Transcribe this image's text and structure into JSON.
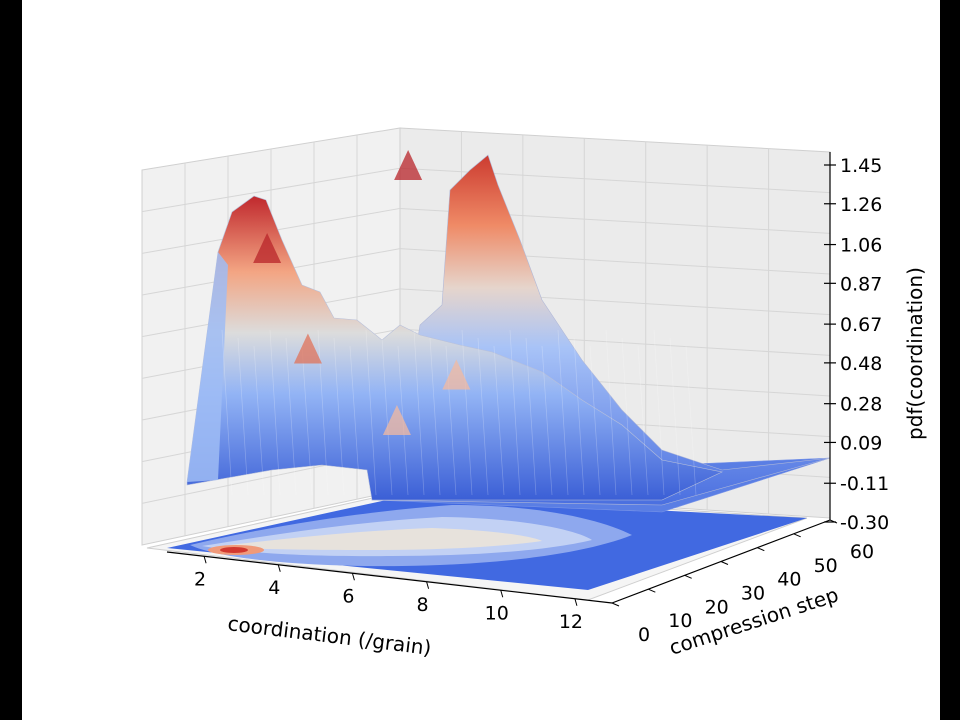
{
  "chart_data": {
    "type": "surface3d",
    "title": "",
    "xlabel": "coordination (/grain)",
    "ylabel": "compression step",
    "zlabel": "pdf(coordination)",
    "x_ticks": [
      "2",
      "4",
      "6",
      "8",
      "10",
      "12"
    ],
    "y_ticks": [
      "0",
      "10",
      "20",
      "30",
      "40",
      "50",
      "60"
    ],
    "z_ticks": [
      "1.45",
      "1.26",
      "1.06",
      "0.87",
      "0.67",
      "0.48",
      "0.28",
      "0.09",
      "-0.11",
      "-0.30"
    ],
    "xlim": [
      1,
      13
    ],
    "ylim": [
      0,
      60
    ],
    "zlim": [
      -0.3,
      1.45
    ],
    "colormap": "coolwarm",
    "projection_contour": true,
    "grid": true,
    "features": [
      {
        "x": 3.7,
        "y": 0,
        "z": 1.32
      },
      {
        "x": 4.8,
        "y": 0,
        "z": 0.85
      },
      {
        "x": 7.2,
        "y": 0,
        "z": 0.55
      },
      {
        "x": 8.5,
        "y": 60,
        "z": 1.42
      },
      {
        "x": 9.8,
        "y": 60,
        "z": 0.42
      }
    ]
  },
  "colors": {
    "low": "#4a6fe0",
    "mid": "#dcdcdc",
    "high": "#c0282d",
    "pane": "#f2f2f2",
    "grid": "#d0d0d0"
  }
}
